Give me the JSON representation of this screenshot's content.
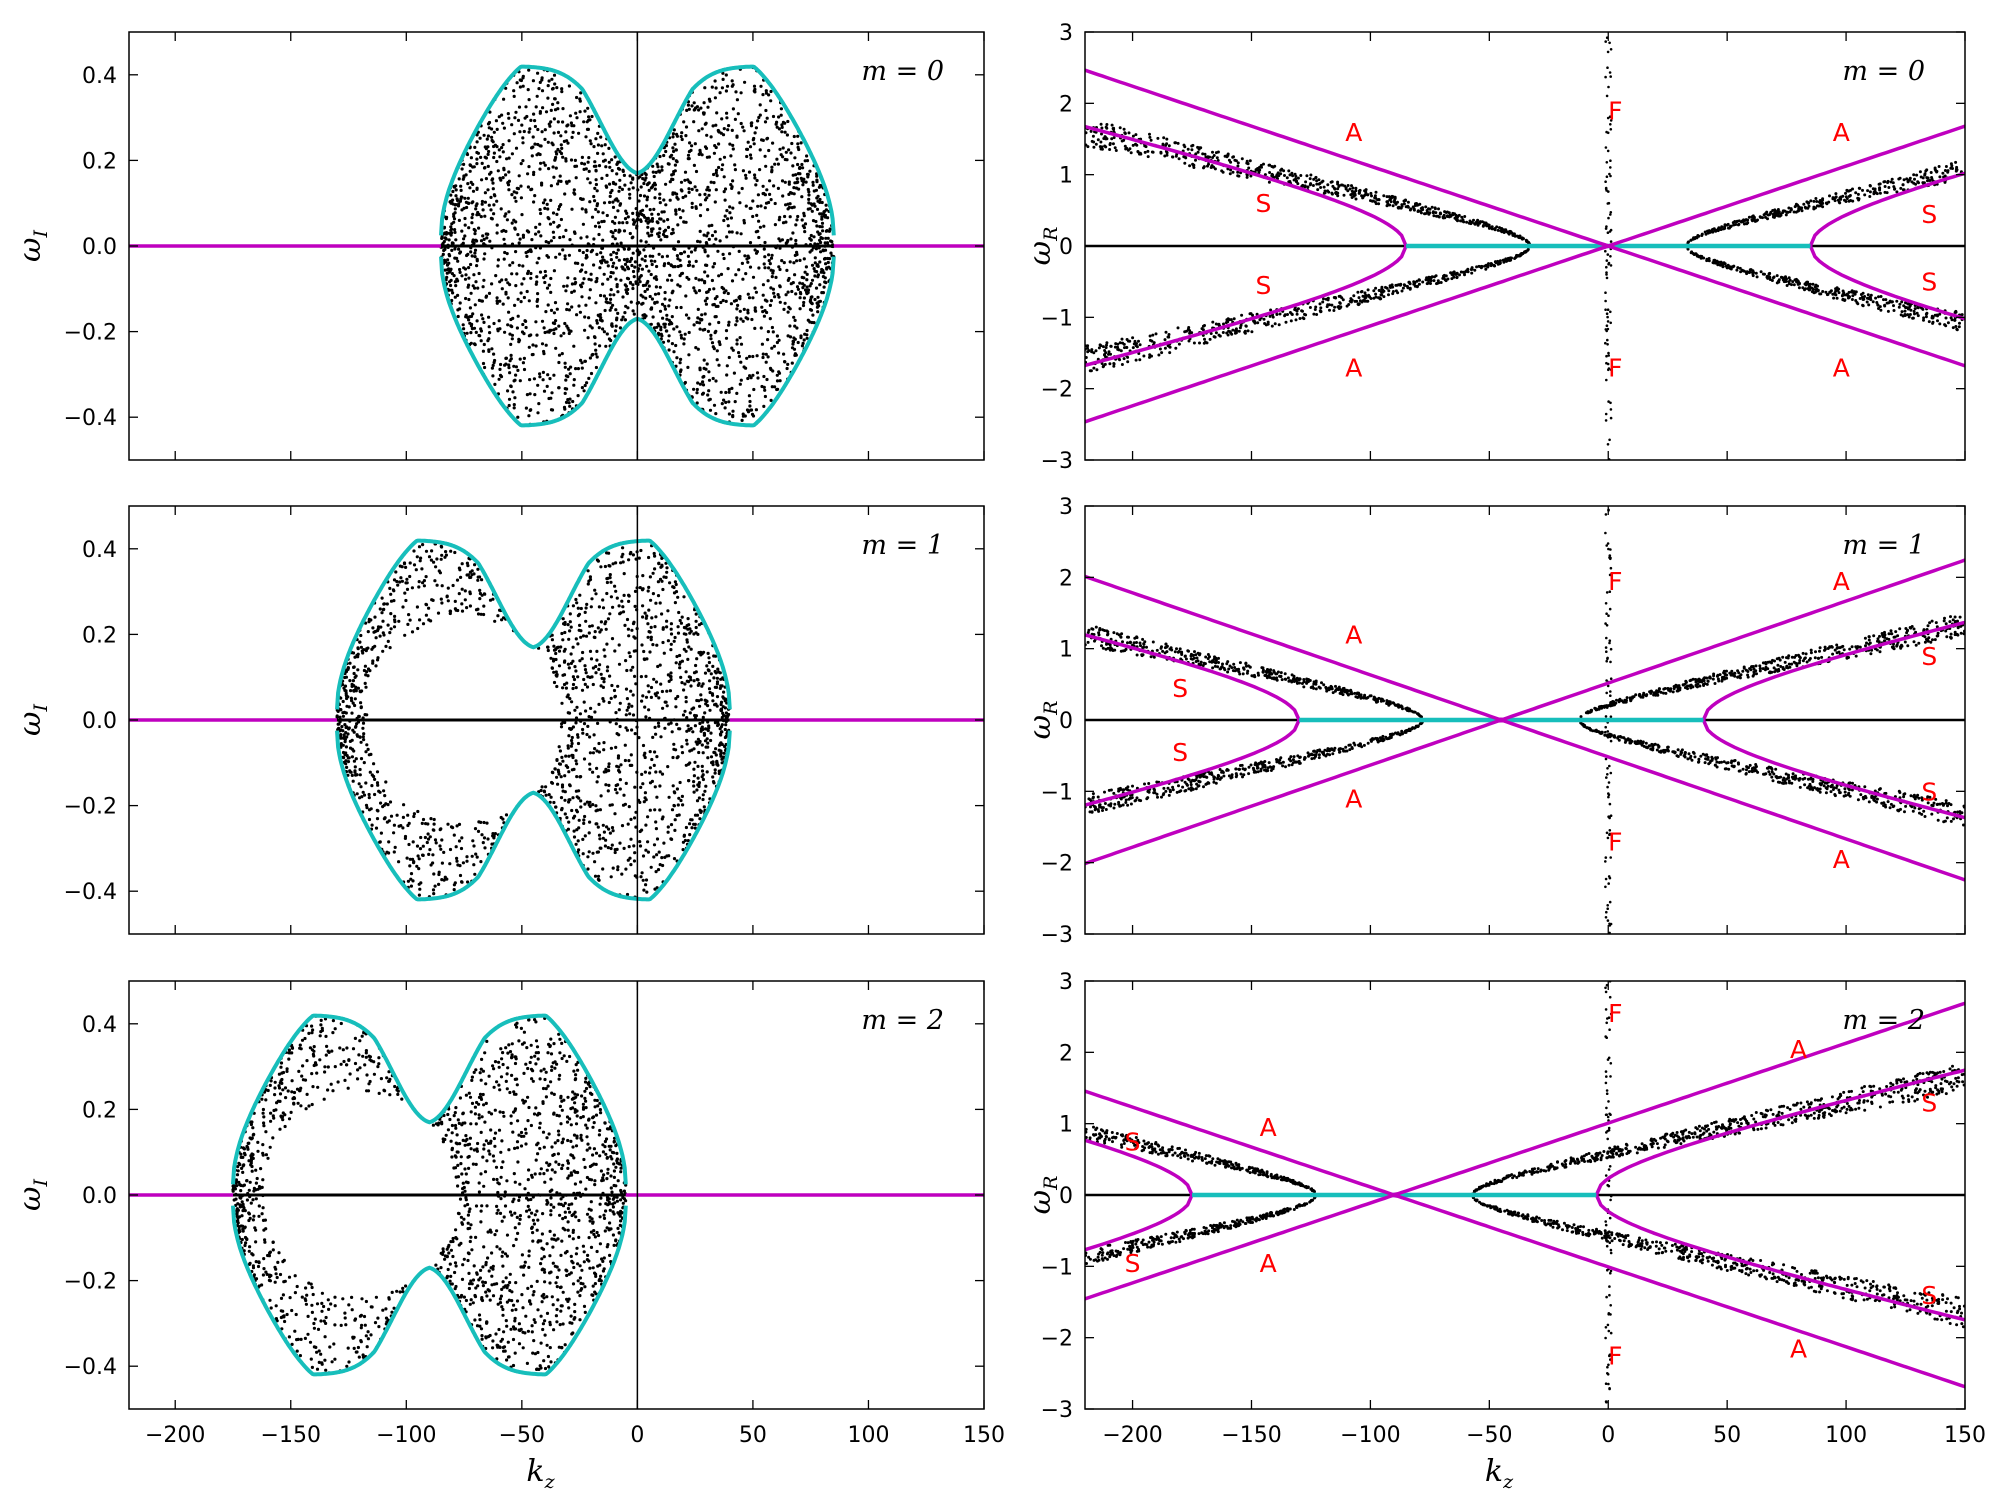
{
  "chart_data": [
    {
      "type": "scatter",
      "panel": "left-m0",
      "annotation": "m = 0",
      "ylabel": "ω_I",
      "xlim": [
        -220,
        150
      ],
      "ylim": [
        -0.5,
        0.5
      ],
      "xticks": [
        -200,
        -150,
        -100,
        -50,
        0,
        50,
        100,
        150
      ],
      "yticks": [
        -0.4,
        -0.2,
        0.0,
        0.2,
        0.4
      ],
      "show_xtick_labels": false,
      "zero_line_x": 0,
      "boundary": {
        "center": 0,
        "halfwidth": 85,
        "peak": 0.42,
        "dip": 0.23,
        "dip_width": 15
      },
      "magenta_line": {
        "y": 0
      },
      "colors": {
        "boundary": "#17bebb",
        "line": "#bf00bf",
        "points": "#000000"
      }
    },
    {
      "type": "scatter",
      "panel": "left-m1",
      "annotation": "m = 1",
      "ylabel": "ω_I",
      "xlim": [
        -220,
        150
      ],
      "ylim": [
        -0.5,
        0.5
      ],
      "xticks": [
        -200,
        -150,
        -100,
        -50,
        0,
        50,
        100,
        150
      ],
      "yticks": [
        -0.4,
        -0.2,
        0.0,
        0.2,
        0.4
      ],
      "show_xtick_labels": false,
      "zero_line_x": 0,
      "boundary": {
        "center": -45,
        "halfwidth": 85,
        "peak": 0.42,
        "dip": 0.23,
        "dip_width": 15
      },
      "magenta_line": {
        "y": 0
      },
      "colors": {
        "boundary": "#17bebb",
        "line": "#bf00bf",
        "points": "#000000"
      }
    },
    {
      "type": "scatter",
      "panel": "left-m2",
      "annotation": "m = 2",
      "ylabel": "ω_I",
      "xlabel": "k_z",
      "xlim": [
        -220,
        150
      ],
      "ylim": [
        -0.5,
        0.5
      ],
      "xticks": [
        -200,
        -150,
        -100,
        -50,
        0,
        50,
        100,
        150
      ],
      "yticks": [
        -0.4,
        -0.2,
        0.0,
        0.2,
        0.4
      ],
      "show_xtick_labels": true,
      "zero_line_x": 0,
      "boundary": {
        "center": -90,
        "halfwidth": 85,
        "peak": 0.42,
        "dip": 0.23,
        "dip_width": 15
      },
      "magenta_line": {
        "y": 0
      },
      "colors": {
        "boundary": "#17bebb",
        "line": "#bf00bf",
        "points": "#000000"
      }
    },
    {
      "type": "line",
      "panel": "right-m0",
      "annotation": "m = 0",
      "ylabel": "ω_R",
      "xlim": [
        -220,
        150
      ],
      "ylim": [
        -3,
        3
      ],
      "xticks": [
        -200,
        -150,
        -100,
        -50,
        0,
        50,
        100,
        150
      ],
      "yticks": [
        -3,
        -2,
        -1,
        0,
        1,
        2,
        3
      ],
      "show_xtick_labels": false,
      "center": 0,
      "alfven_slope": 0.0112,
      "slow": {
        "slope": 0.00825,
        "k0": 85
      },
      "labels": [
        {
          "text": "A",
          "x": -107,
          "y": 1.6
        },
        {
          "text": "A",
          "x": 98,
          "y": 1.6
        },
        {
          "text": "A",
          "x": -107,
          "y": -1.7
        },
        {
          "text": "A",
          "x": 98,
          "y": -1.7
        },
        {
          "text": "S",
          "x": -145,
          "y": 0.6
        },
        {
          "text": "S",
          "x": 135,
          "y": 0.45
        },
        {
          "text": "S",
          "x": -145,
          "y": -0.55
        },
        {
          "text": "S",
          "x": 135,
          "y": -0.5
        },
        {
          "text": "F",
          "x": 3,
          "y": 1.9
        },
        {
          "text": "F",
          "x": 3,
          "y": -1.7
        }
      ],
      "colors": {
        "alfven": "#bf00bf",
        "slow_flat": "#17bebb",
        "points": "#000000",
        "labels": "#ff0000"
      }
    },
    {
      "type": "line",
      "panel": "right-m1",
      "annotation": "m = 1",
      "ylabel": "ω_R",
      "xlim": [
        -220,
        150
      ],
      "ylim": [
        -3,
        3
      ],
      "xticks": [
        -200,
        -150,
        -100,
        -50,
        0,
        50,
        100,
        150
      ],
      "yticks": [
        -3,
        -2,
        -1,
        0,
        1,
        2,
        3
      ],
      "show_xtick_labels": false,
      "center": -45,
      "alfven_slope": 0.0115,
      "slow": {
        "slope": 0.0078,
        "k0": 85
      },
      "labels": [
        {
          "text": "A",
          "x": -107,
          "y": 1.2
        },
        {
          "text": "A",
          "x": 98,
          "y": 1.95
        },
        {
          "text": "A",
          "x": -107,
          "y": -1.1
        },
        {
          "text": "A",
          "x": 98,
          "y": -1.95
        },
        {
          "text": "S",
          "x": -180,
          "y": 0.45
        },
        {
          "text": "S",
          "x": 135,
          "y": 0.9
        },
        {
          "text": "S",
          "x": -180,
          "y": -0.45
        },
        {
          "text": "S",
          "x": 135,
          "y": -1.0
        },
        {
          "text": "F",
          "x": 3,
          "y": 1.95
        },
        {
          "text": "F",
          "x": 3,
          "y": -1.7
        }
      ],
      "colors": {
        "alfven": "#bf00bf",
        "slow_flat": "#17bebb",
        "points": "#000000",
        "labels": "#ff0000"
      }
    },
    {
      "type": "line",
      "panel": "right-m2",
      "annotation": "m = 2",
      "ylabel": "ω_R",
      "xlabel": "k_z",
      "xlim": [
        -220,
        150
      ],
      "ylim": [
        -3,
        3
      ],
      "xticks": [
        -200,
        -150,
        -100,
        -50,
        0,
        50,
        100,
        150
      ],
      "yticks": [
        -3,
        -2,
        -1,
        0,
        1,
        2,
        3
      ],
      "show_xtick_labels": true,
      "center": -90,
      "alfven_slope": 0.0112,
      "slow": {
        "slope": 0.0078,
        "k0": 85
      },
      "labels": [
        {
          "text": "A",
          "x": -143,
          "y": 0.95
        },
        {
          "text": "A",
          "x": 80,
          "y": 2.05
        },
        {
          "text": "A",
          "x": -143,
          "y": -0.95
        },
        {
          "text": "A",
          "x": 80,
          "y": -2.15
        },
        {
          "text": "S",
          "x": -200,
          "y": 0.75
        },
        {
          "text": "S",
          "x": 135,
          "y": 1.3
        },
        {
          "text": "S",
          "x": -200,
          "y": -0.95
        },
        {
          "text": "S",
          "x": 135,
          "y": -1.4
        },
        {
          "text": "F",
          "x": 3,
          "y": 2.55
        },
        {
          "text": "F",
          "x": 3,
          "y": -2.25
        }
      ],
      "colors": {
        "alfven": "#bf00bf",
        "slow_flat": "#17bebb",
        "points": "#000000",
        "labels": "#ff0000"
      }
    }
  ]
}
